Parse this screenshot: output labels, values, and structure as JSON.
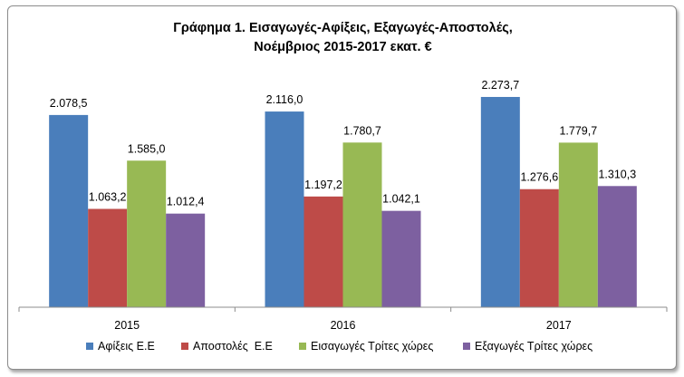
{
  "title": {
    "line1": "Γράφημα 1. Εισαγωγές-Αφίξεις, Εξαγωγές-Αποστολές,",
    "line2": "Νοέμβριος 2015-2017 εκατ. €"
  },
  "chart_data": {
    "type": "bar",
    "categories": [
      "2015",
      "2016",
      "2017"
    ],
    "series": [
      {
        "name": "Αφίξεις Ε.Ε",
        "values": [
          2078.5,
          2116.0,
          2273.7
        ],
        "labels": [
          "2.078,5",
          "2.116,0",
          "2.273,7"
        ],
        "color": "#4a7ebb"
      },
      {
        "name": "Αποστολές  Ε.Ε",
        "values": [
          1063.2,
          1197.2,
          1276.6
        ],
        "labels": [
          "1.063,2",
          "1.197,2",
          "1.276,6"
        ],
        "color": "#be4b48"
      },
      {
        "name": "Εισαγωγές Τρίτες χώρες",
        "values": [
          1585.0,
          1780.7,
          1779.7
        ],
        "labels": [
          "1.585,0",
          "1.780,7",
          "1.779,7"
        ],
        "color": "#98b954"
      },
      {
        "name": "Εξαγωγές Τρίτες χώρες",
        "values": [
          1012.4,
          1042.1,
          1310.3
        ],
        "labels": [
          "1.012,4",
          "1.042,1",
          "1.310,3"
        ],
        "color": "#7d60a0"
      }
    ],
    "ylim": [
      0,
      2500
    ],
    "grid": false,
    "legend_position": "bottom"
  }
}
